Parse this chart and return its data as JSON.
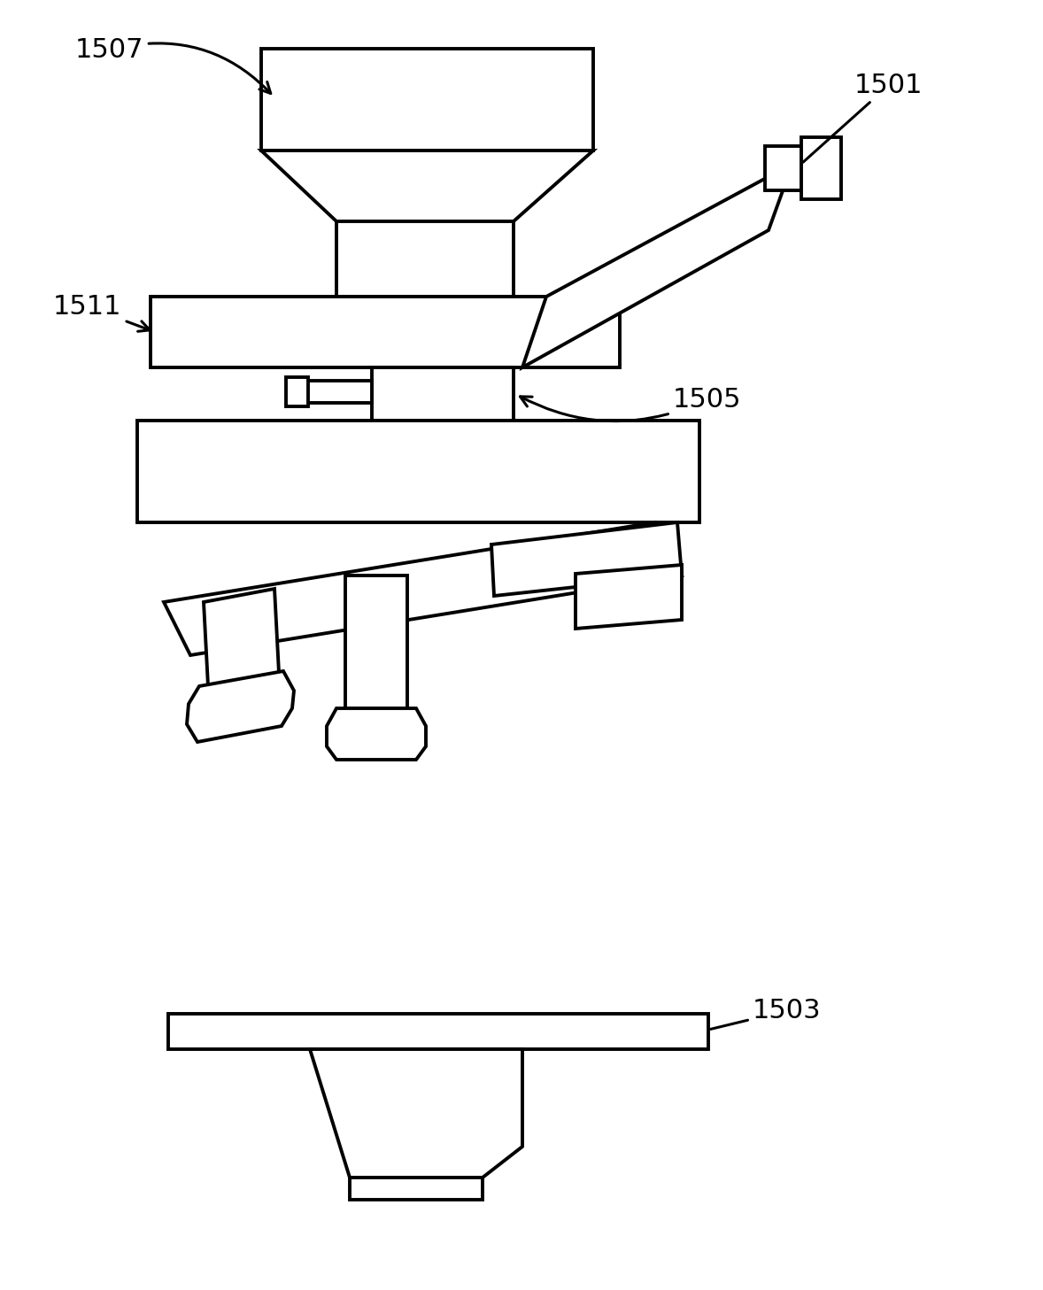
{
  "bg": "#ffffff",
  "lc": "#000000",
  "lw": 2.8,
  "fig_w": 11.78,
  "fig_h": 14.57,
  "dpi": 100
}
